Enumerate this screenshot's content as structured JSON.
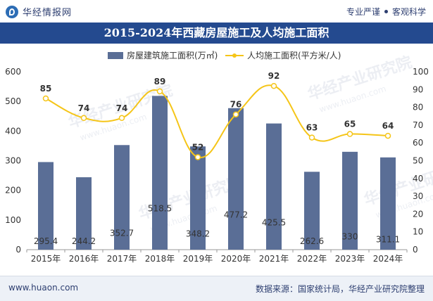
{
  "header": {
    "brand": "华经情报网",
    "tags": [
      "专业严谨",
      "客观科学"
    ]
  },
  "footer": {
    "website": "www.huaon.com",
    "source": "数据来源：国家统计局，华经产业研究院整理"
  },
  "watermarks": [
    "华经产业研究院",
    "www.huaon.com"
  ],
  "colors": {
    "bar": "#5a6e96",
    "line": "#f5c518",
    "title_band": "#244a8f",
    "text": "#333333"
  },
  "chart_data": {
    "type": "bar",
    "title": "2015-2024年西藏房屋施工及人均施工面积",
    "categories": [
      "2015年",
      "2016年",
      "2017年",
      "2018年",
      "2019年",
      "2020年",
      "2021年",
      "2022年",
      "2023年",
      "2024年"
    ],
    "series": [
      {
        "name": "房屋建筑施工面积(万㎡)",
        "type": "bar",
        "axis": "left",
        "values": [
          295.4,
          244.2,
          352.7,
          518.5,
          348.2,
          477.2,
          425.5,
          262.6,
          330,
          311.1
        ],
        "labels": [
          "295.4",
          "244.2",
          "352.7",
          "518.5",
          "348.2",
          "477.2",
          "425.5",
          "262.6",
          "330",
          "311.1"
        ]
      },
      {
        "name": "人均施工面积(平方米/人)",
        "type": "line",
        "axis": "right",
        "values": [
          85,
          74,
          74,
          89,
          52,
          76,
          92,
          63,
          65,
          64
        ],
        "labels": [
          "85",
          "74",
          "74",
          "89",
          "52",
          "76",
          "92",
          "63",
          "65",
          "64"
        ]
      }
    ],
    "ylim_left": [
      0,
      600
    ],
    "ylim_right": [
      0,
      100
    ],
    "yticks_left": [
      "0",
      "100",
      "200",
      "300",
      "400",
      "500",
      "600"
    ],
    "yticks_right": [
      "0",
      "10",
      "20",
      "30",
      "40",
      "50",
      "60",
      "70",
      "80",
      "90",
      "100"
    ],
    "legend_position": "top-center",
    "grid": false
  }
}
